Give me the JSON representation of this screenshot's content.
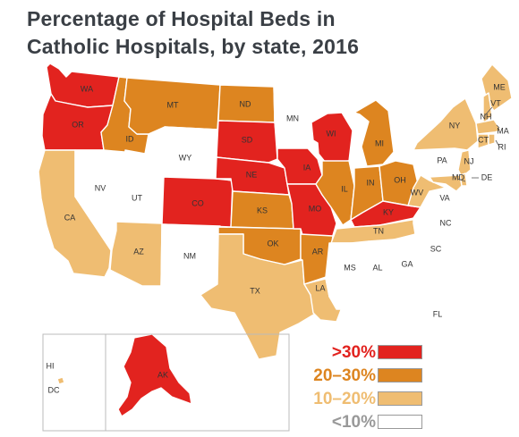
{
  "title": {
    "line1": "Percentage of Hospital Beds in",
    "line2": "Catholic Hospitals, by state, 2016"
  },
  "colors": {
    "over30": "#e2231f",
    "from20to30": "#dd8520",
    "from10to20": "#efbd72",
    "under10": "#ffffff",
    "border": "#999999"
  },
  "legend": [
    {
      "label": ">30%",
      "category": "over30",
      "color": "#e2231f"
    },
    {
      "label": "20–30%",
      "category": "from20to30",
      "color": "#dd8520"
    },
    {
      "label": "10–20%",
      "category": "from10to20",
      "color": "#efbd72"
    },
    {
      "label": "<10%",
      "category": "under10",
      "color": "#ffffff"
    }
  ],
  "states": [
    {
      "id": "WA",
      "category": "over30"
    },
    {
      "id": "OR",
      "category": "over30"
    },
    {
      "id": "CA",
      "category": "from10to20"
    },
    {
      "id": "NV",
      "category": "under10"
    },
    {
      "id": "ID",
      "category": "from20to30"
    },
    {
      "id": "MT",
      "category": "from20to30"
    },
    {
      "id": "WY",
      "category": "under10"
    },
    {
      "id": "UT",
      "category": "under10"
    },
    {
      "id": "AZ",
      "category": "from10to20"
    },
    {
      "id": "CO",
      "category": "over30"
    },
    {
      "id": "NM",
      "category": "under10"
    },
    {
      "id": "ND",
      "category": "from20to30"
    },
    {
      "id": "SD",
      "category": "over30"
    },
    {
      "id": "NE",
      "category": "over30"
    },
    {
      "id": "KS",
      "category": "from20to30"
    },
    {
      "id": "OK",
      "category": "from20to30"
    },
    {
      "id": "TX",
      "category": "from10to20"
    },
    {
      "id": "MN",
      "category": "under10"
    },
    {
      "id": "IA",
      "category": "over30"
    },
    {
      "id": "MO",
      "category": "over30"
    },
    {
      "id": "AR",
      "category": "from20to30"
    },
    {
      "id": "LA",
      "category": "from10to20"
    },
    {
      "id": "WI",
      "category": "over30"
    },
    {
      "id": "IL",
      "category": "from20to30"
    },
    {
      "id": "MI",
      "category": "from20to30"
    },
    {
      "id": "IN",
      "category": "from20to30"
    },
    {
      "id": "OH",
      "category": "from20to30"
    },
    {
      "id": "KY",
      "category": "over30"
    },
    {
      "id": "TN",
      "category": "from10to20"
    },
    {
      "id": "MS",
      "category": "under10"
    },
    {
      "id": "AL",
      "category": "under10"
    },
    {
      "id": "GA",
      "category": "under10"
    },
    {
      "id": "FL",
      "category": "under10"
    },
    {
      "id": "SC",
      "category": "under10"
    },
    {
      "id": "NC",
      "category": "under10"
    },
    {
      "id": "VA",
      "category": "under10"
    },
    {
      "id": "WV",
      "category": "from10to20"
    },
    {
      "id": "PA",
      "category": "under10"
    },
    {
      "id": "NY",
      "category": "from10to20"
    },
    {
      "id": "ME",
      "category": "from10to20"
    },
    {
      "id": "VT",
      "category": "under10"
    },
    {
      "id": "NH",
      "category": "from10to20"
    },
    {
      "id": "MA",
      "category": "from10to20"
    },
    {
      "id": "CT",
      "category": "from10to20"
    },
    {
      "id": "RI",
      "category": "from10to20"
    },
    {
      "id": "NJ",
      "category": "from10to20"
    },
    {
      "id": "DE",
      "category": "from10to20"
    },
    {
      "id": "MD",
      "category": "from10to20"
    },
    {
      "id": "AK",
      "category": "over30"
    },
    {
      "id": "HI",
      "category": "under10"
    },
    {
      "id": "DC",
      "category": "from10to20"
    }
  ]
}
